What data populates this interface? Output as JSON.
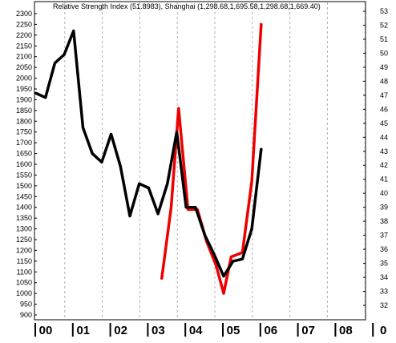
{
  "chart_data": {
    "type": "line",
    "title": "Relative Strength Index (51.8983), Shanghai (1,298.68,1,695.58,1,298.68,1,669.40)",
    "x_ticks": [
      "00",
      "01",
      "02",
      "03",
      "04",
      "05",
      "06",
      "07",
      "08",
      "0"
    ],
    "y_left": {
      "min": 900,
      "max": 2300,
      "step": 50,
      "ticks": [
        "900",
        "950",
        "1000",
        "1050",
        "1100",
        "1150",
        "1200",
        "1250",
        "1300",
        "1350",
        "1400",
        "1450",
        "1500",
        "1550",
        "1600",
        "1650",
        "1700",
        "1750",
        "1800",
        "1850",
        "1900",
        "1950",
        "2000",
        "2050",
        "2100",
        "2150",
        "2200",
        "2250",
        "2300"
      ]
    },
    "y_right": {
      "min": 32,
      "max": 53,
      "step": 1,
      "ticks": [
        "32",
        "33",
        "34",
        "35",
        "36",
        "37",
        "38",
        "39",
        "40",
        "41",
        "42",
        "43",
        "44",
        "45",
        "46",
        "47",
        "48",
        "49",
        "50",
        "51",
        "52",
        "53"
      ]
    },
    "grid": "vertical dashed",
    "series": [
      {
        "color": "#000000",
        "axis": "left",
        "x": [
          2000.0,
          2000.25,
          2000.5,
          2000.75,
          2001.0,
          2001.25,
          2001.5,
          2001.75,
          2002.0,
          2002.25,
          2002.5,
          2002.75,
          2003.0,
          2003.25,
          2003.5,
          2003.75,
          2004.0,
          2004.25,
          2004.5,
          2004.75,
          2005.0,
          2005.25,
          2005.5,
          2005.75,
          2006.0
        ],
        "values": [
          1930,
          1910,
          2070,
          2110,
          2220,
          1770,
          1650,
          1610,
          1740,
          1590,
          1360,
          1510,
          1490,
          1370,
          1510,
          1750,
          1400,
          1400,
          1270,
          1180,
          1080,
          1150,
          1160,
          1300,
          1670
        ]
      },
      {
        "color": "#ee0000",
        "axis": "left",
        "x": [
          2003.35,
          2003.6,
          2003.8,
          2004.05,
          2004.3,
          2004.55,
          2004.8,
          2005.0,
          2005.2,
          2005.5,
          2005.75,
          2006.0
        ],
        "values": [
          1070,
          1400,
          1860,
          1390,
          1390,
          1240,
          1130,
          1000,
          1170,
          1190,
          1520,
          2250
        ]
      }
    ]
  }
}
